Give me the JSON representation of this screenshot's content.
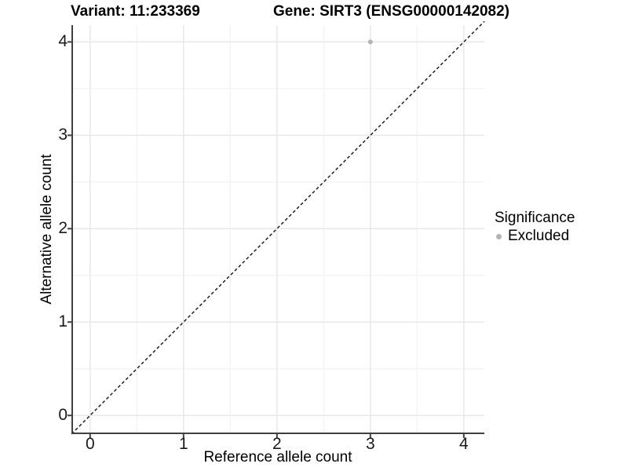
{
  "chart_data": {
    "type": "scatter",
    "title_left": "Variant: 11:233369",
    "title_right": "Gene: SIRT3 (ENSG00000142082)",
    "xlabel": "Reference allele count",
    "ylabel": "Alternative allele count",
    "xlim": [
      -0.2,
      4.22
    ],
    "ylim": [
      -0.2,
      4.18
    ],
    "x_ticks": [
      0,
      1,
      2,
      3,
      4
    ],
    "y_ticks": [
      0,
      1,
      2,
      3,
      4
    ],
    "minor_x": [
      0.5,
      1.5,
      2.5,
      3.5
    ],
    "minor_y": [
      0.5,
      1.5,
      2.5,
      3.5
    ],
    "grid": "on",
    "legend": {
      "title": "Significance",
      "position": "right-center",
      "items": [
        {
          "label": "Excluded",
          "color": "#b4b4b4"
        }
      ]
    },
    "series": [
      {
        "name": "Excluded",
        "color": "#b4b4b4",
        "marker": "circle",
        "points": [
          {
            "x": 3,
            "y": 4
          }
        ]
      }
    ],
    "reference_line": {
      "kind": "identity y = x",
      "style": "dashed",
      "color": "#111111",
      "from": [
        -0.2,
        -0.2
      ],
      "to": [
        4.22,
        4.22
      ]
    }
  },
  "style": {
    "background": "#ffffff",
    "grid_major": "#e8e8e8",
    "grid_minor": "#f3f3f3",
    "axis_line": "#404040",
    "tick_label_color": "#1a1a1a",
    "point_color": "#b4b4b4"
  }
}
